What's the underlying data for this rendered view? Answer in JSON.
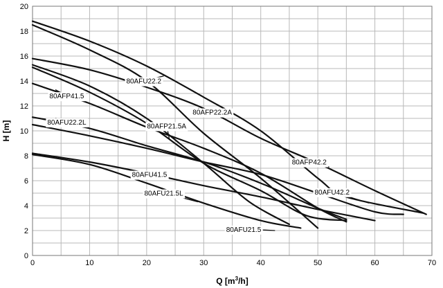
{
  "chart_data": {
    "type": "line",
    "title": "",
    "xlabel_main": "Q [m",
    "xlabel_sup": "3",
    "xlabel_tail": "/h]",
    "ylabel": "H [m]",
    "xlim": [
      0,
      70
    ],
    "ylim": [
      0,
      20
    ],
    "xticks": [
      "0",
      "10",
      "20",
      "30",
      "40",
      "50",
      "60",
      "70"
    ],
    "yticks": [
      "0",
      "2",
      "4",
      "6",
      "8",
      "10",
      "12",
      "14",
      "16",
      "18",
      "20"
    ],
    "grid": true,
    "series": [
      {
        "name": "80AFU22.2",
        "points": [
          [
            0,
            18.8
          ],
          [
            10,
            17.2
          ],
          [
            20,
            15.2
          ],
          [
            30,
            12.7
          ],
          [
            40,
            10.0
          ],
          [
            50,
            6.2
          ],
          [
            55,
            4.7
          ],
          [
            68.5,
            3.4
          ]
        ]
      },
      {
        "name": "80AFP22.2A",
        "points": [
          [
            0,
            18.5
          ],
          [
            10,
            16.5
          ],
          [
            20,
            14.0
          ],
          [
            30,
            9.8
          ],
          [
            40,
            6.2
          ],
          [
            50,
            2.2
          ]
        ]
      },
      {
        "name": "80AFP42.2",
        "points": [
          [
            0,
            15.8
          ],
          [
            10,
            14.9
          ],
          [
            20,
            13.5
          ],
          [
            30,
            11.8
          ],
          [
            40,
            9.4
          ],
          [
            50,
            7.4
          ],
          [
            60,
            5.2
          ],
          [
            69,
            3.3
          ]
        ]
      },
      {
        "name": "80AFP41.5",
        "points": [
          [
            0,
            13.8
          ],
          [
            10,
            12.2
          ],
          [
            20,
            10.3
          ],
          [
            30,
            8.6
          ],
          [
            40,
            6.6
          ],
          [
            50,
            3.8
          ],
          [
            55,
            2.7
          ]
        ]
      },
      {
        "name": "80AFP21.5A",
        "points": [
          [
            0,
            15.3
          ],
          [
            10,
            13.6
          ],
          [
            20,
            11.0
          ],
          [
            30,
            7.4
          ],
          [
            38,
            4.3
          ],
          [
            45,
            2.5
          ]
        ]
      },
      {
        "name": "80AFU22.2L",
        "points": [
          [
            0,
            11.1
          ],
          [
            10,
            10.2
          ],
          [
            20,
            8.8
          ],
          [
            30,
            7.5
          ],
          [
            40,
            5.8
          ],
          [
            50,
            3.8
          ],
          [
            55,
            2.9
          ]
        ]
      },
      {
        "name": "80AFU21.5L",
        "points": [
          [
            0,
            15.1
          ],
          [
            10,
            13.1
          ],
          [
            20,
            10.6
          ],
          [
            30,
            7.4
          ],
          [
            40,
            5.2
          ],
          [
            48,
            3.2
          ],
          [
            55,
            2.8
          ]
        ]
      },
      {
        "name": "80AFU41.5",
        "points": [
          [
            0,
            10.5
          ],
          [
            10,
            9.6
          ],
          [
            20,
            8.6
          ],
          [
            30,
            7.5
          ],
          [
            40,
            6.5
          ],
          [
            50,
            5.0
          ],
          [
            60,
            3.5
          ],
          [
            65,
            3.3
          ]
        ]
      },
      {
        "name": "80AFU42.2",
        "points": [
          [
            0,
            8.2
          ],
          [
            10,
            7.5
          ],
          [
            20,
            6.6
          ],
          [
            30,
            5.6
          ],
          [
            40,
            4.7
          ],
          [
            50,
            3.7
          ],
          [
            60,
            2.8
          ]
        ]
      },
      {
        "name": "80AFU21.5",
        "points": [
          [
            0,
            8.1
          ],
          [
            10,
            7.3
          ],
          [
            20,
            5.8
          ],
          [
            30,
            4.2
          ],
          [
            40,
            2.8
          ],
          [
            47,
            2.2
          ]
        ]
      }
    ],
    "labels": [
      {
        "text": "80AFU22.2",
        "at": [
          19.5,
          13.8
        ],
        "anchor": [
          23,
          14.4
        ]
      },
      {
        "text": "80AFP22.2A",
        "at": [
          31.5,
          11.3
        ],
        "anchor": [
          29,
          11.8
        ]
      },
      {
        "text": "80AFP41.5",
        "at": [
          6,
          12.6
        ],
        "anchor": [
          4,
          13.3
        ]
      },
      {
        "text": "80AFU22.2L",
        "at": [
          6,
          10.5
        ],
        "anchor": [
          4,
          11.0
        ]
      },
      {
        "text": "80AFP21.5A",
        "at": [
          23.5,
          10.2
        ],
        "anchor": [
          24,
          9.3
        ]
      },
      {
        "text": "80AFP42.2",
        "at": [
          48.5,
          7.3
        ],
        "anchor": [
          52,
          7.1
        ]
      },
      {
        "text": "80AFU41.5",
        "at": [
          20.5,
          6.3
        ],
        "anchor": [
          18,
          6.7
        ]
      },
      {
        "text": "80AFU42.2",
        "at": [
          52.5,
          4.9
        ],
        "anchor": [
          59,
          4.2
        ]
      },
      {
        "text": "80AFU21.5L",
        "at": [
          23,
          4.8
        ],
        "anchor": [
          29,
          4.3
        ]
      },
      {
        "text": "80AFU21.5",
        "at": [
          37,
          1.9
        ],
        "anchor": [
          42.5,
          2.0
        ]
      }
    ]
  }
}
